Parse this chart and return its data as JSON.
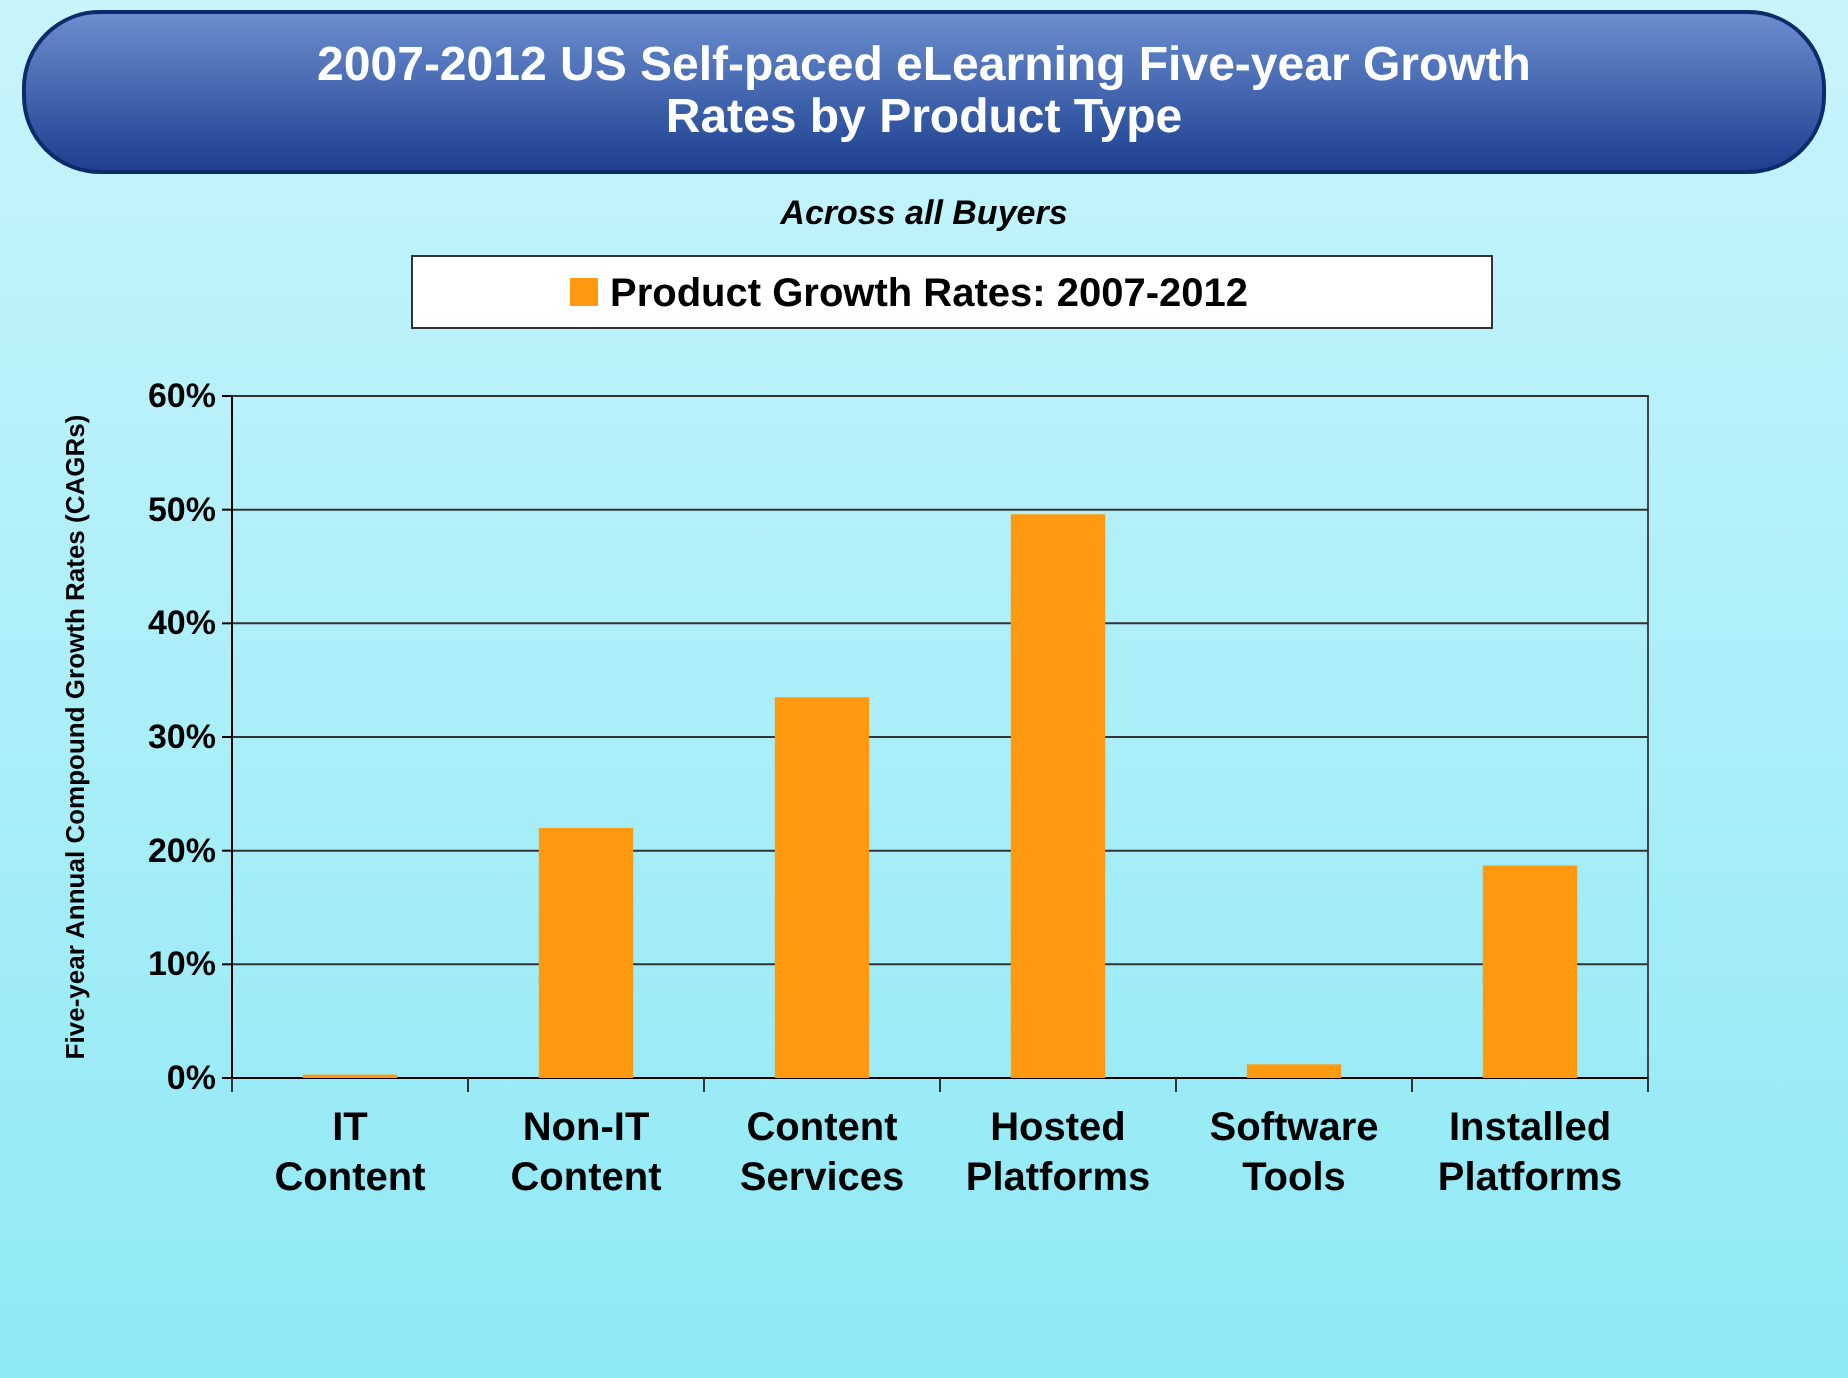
{
  "chart_data": {
    "type": "bar",
    "title": "2007-2012 US Self-paced eLearning Five-year Growth Rates by Product Type",
    "subtitle": "Across all Buyers",
    "ylabel": "Five-year Annual Compound Growth Rates (CAGRs)",
    "categories": [
      "IT Content",
      "Non-IT Content",
      "Content Services",
      "Hosted Platforms",
      "Software Tools",
      "Installed Platforms"
    ],
    "series": [
      {
        "name": "Product Growth Rates: 2007-2012",
        "color": "#ff9a10",
        "values": [
          0.3,
          22.0,
          33.5,
          49.6,
          1.2,
          18.7
        ]
      }
    ],
    "ylim": [
      0,
      60
    ],
    "yticks": [
      {
        "value": 0,
        "label": "0%"
      },
      {
        "value": 10,
        "label": "10%"
      },
      {
        "value": 20,
        "label": "20%"
      },
      {
        "value": 30,
        "label": "30%"
      },
      {
        "value": 40,
        "label": "40%"
      },
      {
        "value": 50,
        "label": "50%"
      },
      {
        "value": 60,
        "label": "60%"
      }
    ],
    "grid": "y",
    "legend": "top"
  }
}
